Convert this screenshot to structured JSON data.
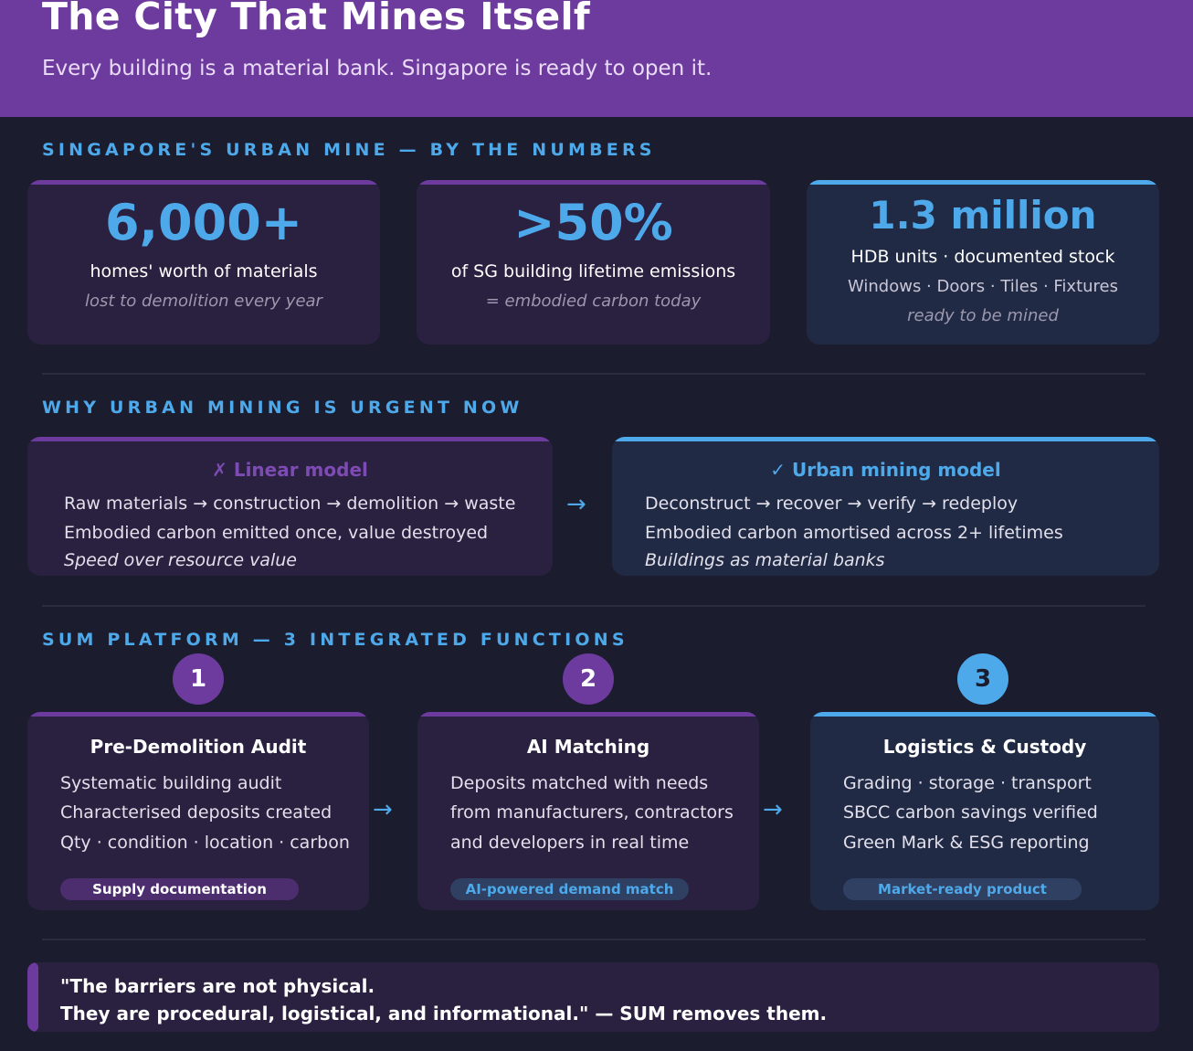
{
  "header": {
    "title": "The City That Mines Itself",
    "subtitle": "Every building is a material bank. Singapore is ready to open it."
  },
  "numbers": {
    "heading": "SINGAPORE'S URBAN MINE — BY THE NUMBERS",
    "cards": [
      {
        "big": "6,000+",
        "label": "homes' worth of materials",
        "note": "lost to demolition every year"
      },
      {
        "big": ">50%",
        "label": "of SG building lifetime emissions",
        "note": "= embodied carbon today"
      },
      {
        "big": "1.3 million",
        "label": "HDB units · documented stock",
        "detail": "Windows · Doors · Tiles · Fixtures",
        "note": "ready to be mined"
      }
    ]
  },
  "urgent": {
    "heading": "WHY URBAN MINING IS URGENT NOW",
    "linear": {
      "title": "✗ Linear model",
      "line1": "Raw materials → construction → demolition → waste",
      "line2": "Embodied carbon emitted once, value destroyed",
      "note": "Speed over resource value"
    },
    "arrow": "→",
    "urban": {
      "title": "✓ Urban mining model",
      "line1": "Deconstruct → recover → verify → redeploy",
      "line2": "Embodied carbon amortised across 2+ lifetimes",
      "note": "Buildings as material banks"
    }
  },
  "platform": {
    "heading": "SUM PLATFORM — 3 INTEGRATED FUNCTIONS",
    "arrow": "→",
    "steps": [
      {
        "num": "1",
        "title": "Pre-Demolition Audit",
        "lines": [
          "Systematic building audit",
          "Characterised deposits created",
          "Qty · condition · location · carbon"
        ],
        "tag": "Supply documentation"
      },
      {
        "num": "2",
        "title": "AI Matching",
        "lines": [
          "Deposits matched with needs",
          "from manufacturers, contractors",
          "and developers in real time"
        ],
        "tag": "AI-powered demand match"
      },
      {
        "num": "3",
        "title": "Logistics & Custody",
        "lines": [
          "Grading · storage · transport",
          "SBCC carbon savings verified",
          "Green Mark & ESG reporting"
        ],
        "tag": "Market-ready product"
      }
    ]
  },
  "quote": {
    "line1": "\"The barriers are not physical.",
    "line2": "They are procedural, logistical, and informational.\" — SUM removes them."
  },
  "colors": {
    "purple": "#6d3b9e",
    "blue": "#4ea9ea",
    "background": "#1b1c2e"
  }
}
